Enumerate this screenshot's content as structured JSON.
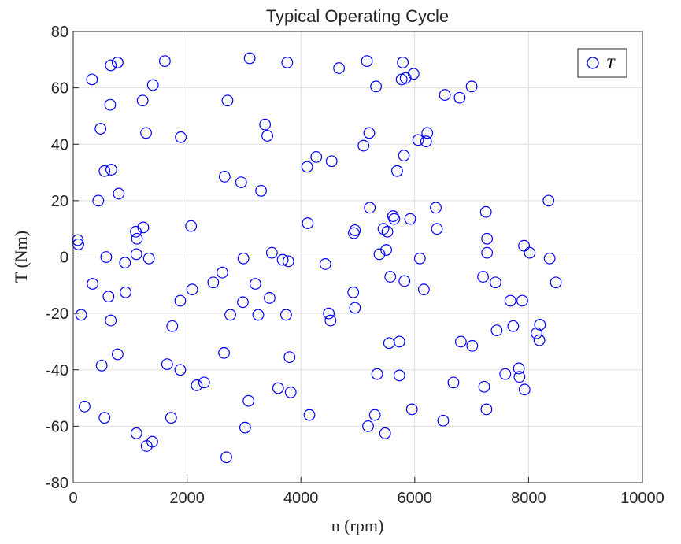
{
  "chart_data": {
    "type": "scatter",
    "title": "Typical Operating Cycle",
    "xlabel": "n (rpm)",
    "ylabel": "T (Nm)",
    "xlim": [
      0,
      10000
    ],
    "ylim": [
      -80,
      80
    ],
    "xticks": [
      0,
      2000,
      4000,
      6000,
      8000,
      10000
    ],
    "yticks": [
      -80,
      -60,
      -40,
      -20,
      0,
      20,
      40,
      60,
      80
    ],
    "grid": true,
    "legend": {
      "position": "top-right",
      "entries": [
        "T"
      ]
    },
    "series": [
      {
        "name": "T",
        "color": "#0000ff",
        "marker": "open-circle",
        "points": [
          [
            80,
            6
          ],
          [
            90,
            4.5
          ],
          [
            140,
            -20.5
          ],
          [
            200,
            -53
          ],
          [
            330,
            63
          ],
          [
            340,
            -9.5
          ],
          [
            440,
            20
          ],
          [
            480,
            45.5
          ],
          [
            500,
            -38.5
          ],
          [
            550,
            30.5
          ],
          [
            550,
            -57
          ],
          [
            580,
            0
          ],
          [
            620,
            -14
          ],
          [
            650,
            54
          ],
          [
            660,
            -22.5
          ],
          [
            670,
            31
          ],
          [
            660,
            68
          ],
          [
            780,
            69
          ],
          [
            780,
            -34.5
          ],
          [
            800,
            22.5
          ],
          [
            910,
            -2
          ],
          [
            920,
            -12.5
          ],
          [
            1100,
            9
          ],
          [
            1110,
            1
          ],
          [
            1110,
            -62.5
          ],
          [
            1120,
            6.5
          ],
          [
            1220,
            55.5
          ],
          [
            1230,
            10.5
          ],
          [
            1280,
            44
          ],
          [
            1290,
            -67
          ],
          [
            1330,
            -0.5
          ],
          [
            1390,
            -65.5
          ],
          [
            1400,
            61
          ],
          [
            1610,
            69.5
          ],
          [
            1650,
            -38
          ],
          [
            1720,
            -57
          ],
          [
            1740,
            -24.5
          ],
          [
            1880,
            -15.5
          ],
          [
            1880,
            -40
          ],
          [
            1890,
            42.5
          ],
          [
            2070,
            11
          ],
          [
            2090,
            -11.5
          ],
          [
            2170,
            -45.5
          ],
          [
            2300,
            -44.5
          ],
          [
            2460,
            -9
          ],
          [
            2620,
            -5.5
          ],
          [
            2650,
            -34
          ],
          [
            2660,
            28.5
          ],
          [
            2690,
            -71
          ],
          [
            2710,
            55.5
          ],
          [
            2760,
            -20.5
          ],
          [
            2950,
            26.5
          ],
          [
            2980,
            -16
          ],
          [
            2990,
            -0.5
          ],
          [
            3020,
            -60.5
          ],
          [
            3080,
            -51
          ],
          [
            3100,
            70.5
          ],
          [
            3200,
            -9.5
          ],
          [
            3250,
            -20.5
          ],
          [
            3300,
            23.5
          ],
          [
            3370,
            47
          ],
          [
            3410,
            43
          ],
          [
            3450,
            -14.5
          ],
          [
            3490,
            1.5
          ],
          [
            3600,
            -46.5
          ],
          [
            3680,
            -1
          ],
          [
            3740,
            -20.5
          ],
          [
            3760,
            69
          ],
          [
            3780,
            -1.5
          ],
          [
            3800,
            -35.5
          ],
          [
            3820,
            -48
          ],
          [
            4110,
            32
          ],
          [
            4120,
            12
          ],
          [
            4150,
            -56
          ],
          [
            4270,
            35.5
          ],
          [
            4430,
            -2.5
          ],
          [
            4490,
            -20
          ],
          [
            4520,
            -22.5
          ],
          [
            4540,
            34
          ],
          [
            4670,
            67
          ],
          [
            4920,
            -12.5
          ],
          [
            4930,
            8.5
          ],
          [
            4950,
            9.5
          ],
          [
            4950,
            -18
          ],
          [
            5100,
            39.5
          ],
          [
            5160,
            69.5
          ],
          [
            5180,
            -60
          ],
          [
            5200,
            44
          ],
          [
            5210,
            17.5
          ],
          [
            5300,
            -56
          ],
          [
            5320,
            60.5
          ],
          [
            5340,
            -41.5
          ],
          [
            5380,
            1
          ],
          [
            5450,
            10
          ],
          [
            5480,
            -62.5
          ],
          [
            5500,
            2.5
          ],
          [
            5520,
            9
          ],
          [
            5550,
            -30.5
          ],
          [
            5570,
            -7
          ],
          [
            5620,
            14.5
          ],
          [
            5640,
            13.5
          ],
          [
            5690,
            30.5
          ],
          [
            5730,
            -42
          ],
          [
            5730,
            -30
          ],
          [
            5770,
            63
          ],
          [
            5790,
            69
          ],
          [
            5810,
            36
          ],
          [
            5820,
            -8.5
          ],
          [
            5840,
            63.5
          ],
          [
            5920,
            13.5
          ],
          [
            5950,
            -54
          ],
          [
            5980,
            65
          ],
          [
            6060,
            41.5
          ],
          [
            6090,
            -0.5
          ],
          [
            6160,
            -11.5
          ],
          [
            6200,
            41
          ],
          [
            6220,
            44
          ],
          [
            6370,
            17.5
          ],
          [
            6390,
            10
          ],
          [
            6500,
            -58
          ],
          [
            6530,
            57.5
          ],
          [
            6680,
            -44.5
          ],
          [
            6790,
            56.5
          ],
          [
            6810,
            -30
          ],
          [
            7000,
            60.5
          ],
          [
            7010,
            -31.5
          ],
          [
            7200,
            -7
          ],
          [
            7220,
            -46
          ],
          [
            7250,
            16
          ],
          [
            7260,
            -54
          ],
          [
            7270,
            6.5
          ],
          [
            7270,
            1.5
          ],
          [
            7420,
            -9
          ],
          [
            7440,
            -26
          ],
          [
            7590,
            -41.5
          ],
          [
            7680,
            -15.5
          ],
          [
            7730,
            -24.5
          ],
          [
            7830,
            -39.5
          ],
          [
            7840,
            -42.5
          ],
          [
            7890,
            -15.5
          ],
          [
            7920,
            4
          ],
          [
            7930,
            -47
          ],
          [
            8020,
            1.5
          ],
          [
            8140,
            -27
          ],
          [
            8190,
            -29.5
          ],
          [
            8200,
            -24
          ],
          [
            8350,
            20
          ],
          [
            8370,
            -0.5
          ],
          [
            8480,
            -9
          ]
        ]
      }
    ]
  }
}
